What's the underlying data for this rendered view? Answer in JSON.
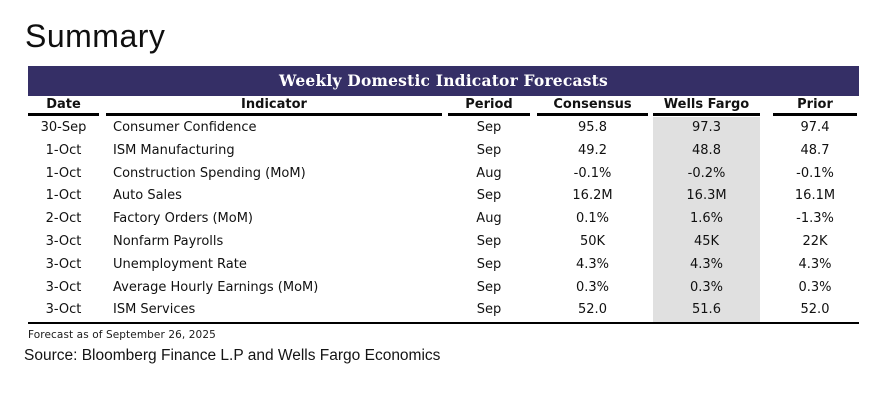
{
  "page": {
    "title": "Summary",
    "footnote": "Forecast as of September 26, 2025",
    "source_line": "Source: Bloomberg Finance L.P and Wells Fargo Economics"
  },
  "colors": {
    "band_background": "#352F66",
    "band_text": "#FFFFFF",
    "highlight_column_background": "#E0E0E0",
    "rule_color": "#000000"
  },
  "table": {
    "title": "Weekly Domestic Indicator Forecasts",
    "highlight_column": "wells_fargo",
    "columns": [
      {
        "key": "date",
        "label": "Date"
      },
      {
        "key": "indicator",
        "label": "Indicator"
      },
      {
        "key": "period",
        "label": "Period"
      },
      {
        "key": "consensus",
        "label": "Consensus"
      },
      {
        "key": "wells_fargo",
        "label": "Wells Fargo"
      },
      {
        "key": "prior",
        "label": "Prior"
      }
    ],
    "rows": [
      {
        "date": "30-Sep",
        "indicator": "Consumer Confidence",
        "period": "Sep",
        "consensus": "95.8",
        "wells_fargo": "97.3",
        "prior": "97.4"
      },
      {
        "date": "1-Oct",
        "indicator": "ISM Manufacturing",
        "period": "Sep",
        "consensus": "49.2",
        "wells_fargo": "48.8",
        "prior": "48.7"
      },
      {
        "date": "1-Oct",
        "indicator": "Construction Spending (MoM)",
        "period": "Aug",
        "consensus": "-0.1%",
        "wells_fargo": "-0.2%",
        "prior": "-0.1%"
      },
      {
        "date": "1-Oct",
        "indicator": "Auto Sales",
        "period": "Sep",
        "consensus": "16.2M",
        "wells_fargo": "16.3M",
        "prior": "16.1M"
      },
      {
        "date": "2-Oct",
        "indicator": "Factory Orders (MoM)",
        "period": "Aug",
        "consensus": "0.1%",
        "wells_fargo": "1.6%",
        "prior": "-1.3%"
      },
      {
        "date": "3-Oct",
        "indicator": "Nonfarm Payrolls",
        "period": "Sep",
        "consensus": "50K",
        "wells_fargo": "45K",
        "prior": "22K"
      },
      {
        "date": "3-Oct",
        "indicator": "Unemployment Rate",
        "period": "Sep",
        "consensus": "4.3%",
        "wells_fargo": "4.3%",
        "prior": "4.3%"
      },
      {
        "date": "3-Oct",
        "indicator": "Average Hourly Earnings (MoM)",
        "period": "Sep",
        "consensus": "0.3%",
        "wells_fargo": "0.3%",
        "prior": "0.3%"
      },
      {
        "date": "3-Oct",
        "indicator": "ISM Services",
        "period": "Sep",
        "consensus": "52.0",
        "wells_fargo": "51.6",
        "prior": "52.0"
      }
    ]
  }
}
